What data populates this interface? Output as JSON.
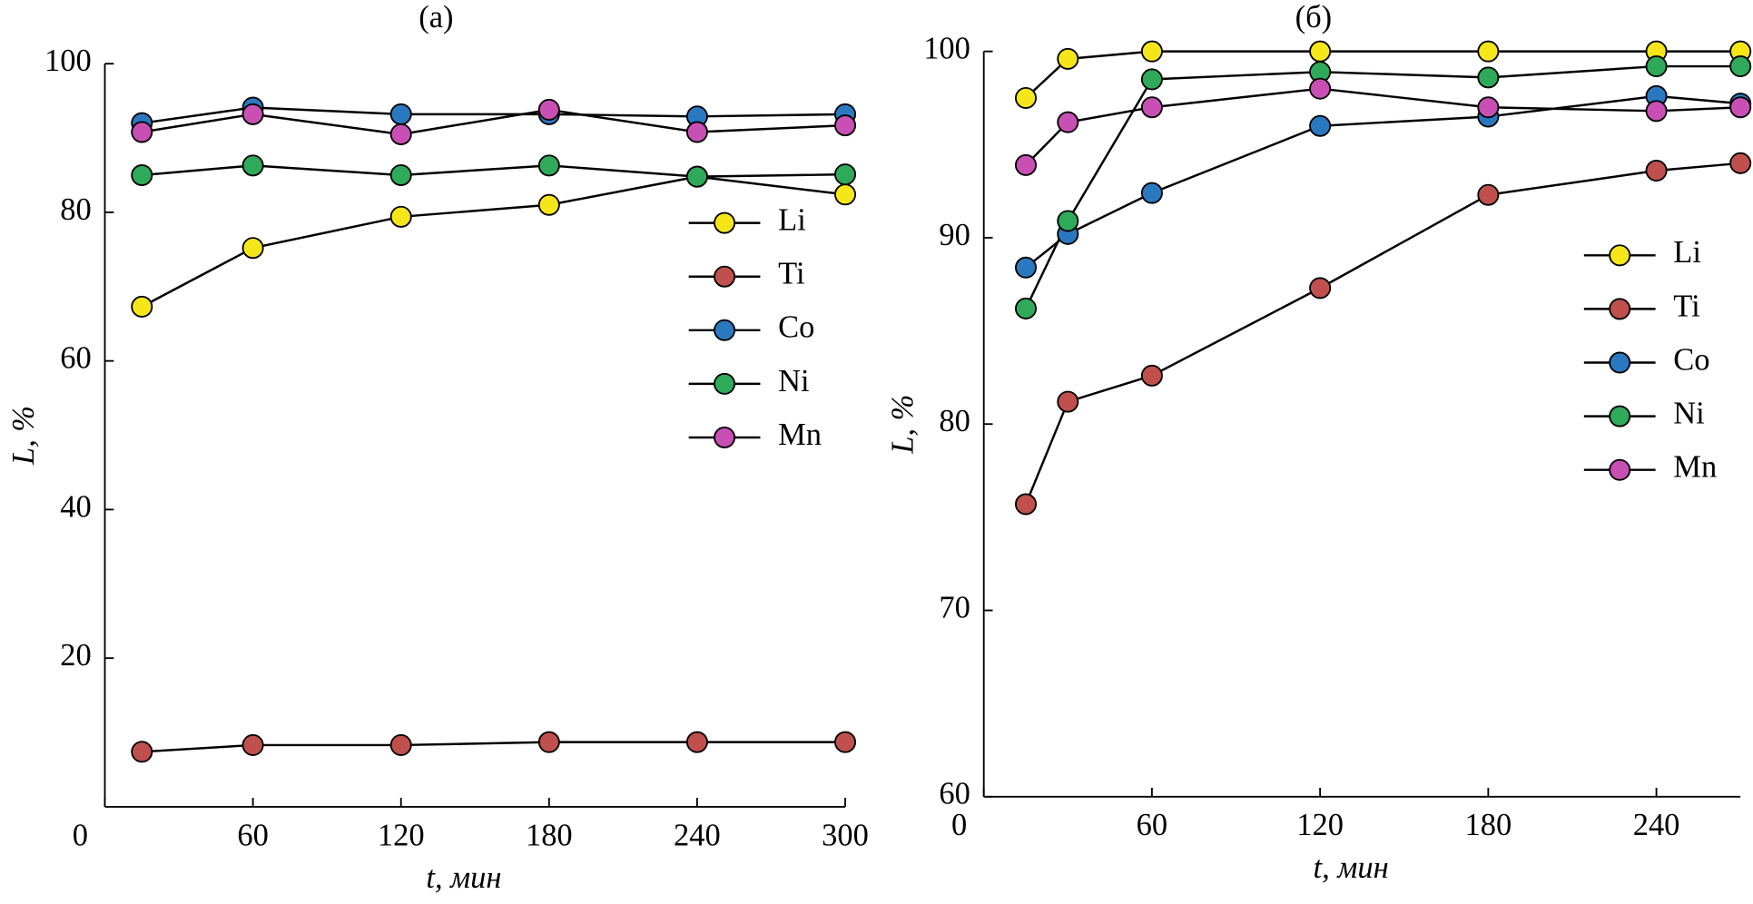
{
  "chart_data": [
    {
      "type": "line",
      "title": "(a)",
      "xlabel": "t, мин",
      "ylabel": "L, %",
      "x": [
        15,
        60,
        120,
        180,
        240,
        300
      ],
      "xlim": [
        0,
        300
      ],
      "xticks": [
        0,
        60,
        120,
        180,
        240,
        300
      ],
      "ylim": [
        0,
        100
      ],
      "yticks": [
        20,
        40,
        60,
        80,
        100
      ],
      "legend": "center right",
      "series": [
        {
          "name": "Li",
          "color": "#f5e61a",
          "values": [
            67.3,
            75.2,
            79.4,
            81.0,
            84.8,
            82.4
          ]
        },
        {
          "name": "Ti",
          "color": "#c0504d",
          "values": [
            7.4,
            8.3,
            8.3,
            8.7,
            8.7,
            8.7
          ]
        },
        {
          "name": "Co",
          "color": "#2a79c0",
          "values": [
            92.0,
            94.1,
            93.2,
            93.2,
            92.9,
            93.2
          ]
        },
        {
          "name": "Ni",
          "color": "#2eaa5a",
          "values": [
            85.0,
            86.3,
            85.0,
            86.3,
            84.8,
            85.1
          ]
        },
        {
          "name": "Mn",
          "color": "#c84fb4",
          "values": [
            90.8,
            93.2,
            90.5,
            93.8,
            90.8,
            91.7
          ]
        }
      ]
    },
    {
      "type": "line",
      "title": "(б)",
      "xlabel": "t, мин",
      "ylabel": "L, %",
      "x": [
        15,
        30,
        60,
        120,
        180,
        240,
        270
      ],
      "xlim": [
        0,
        270
      ],
      "xticks": [
        0,
        60,
        120,
        180,
        240
      ],
      "ylim": [
        60,
        100
      ],
      "yticks": [
        60,
        70,
        80,
        90,
        100
      ],
      "legend": "center right",
      "series": [
        {
          "name": "Li",
          "color": "#f5e61a",
          "values": [
            97.5,
            99.6,
            100,
            100,
            100,
            100,
            100
          ]
        },
        {
          "name": "Ti",
          "color": "#c0504d",
          "values": [
            75.7,
            81.2,
            82.6,
            87.3,
            92.3,
            93.6,
            94.0
          ]
        },
        {
          "name": "Co",
          "color": "#2a79c0",
          "values": [
            88.4,
            90.2,
            92.4,
            96.0,
            96.5,
            97.6,
            97.2
          ]
        },
        {
          "name": "Ni",
          "color": "#2eaa5a",
          "values": [
            86.2,
            90.9,
            98.5,
            98.9,
            98.6,
            99.2,
            99.2
          ]
        },
        {
          "name": "Mn",
          "color": "#c84fb4",
          "values": [
            93.9,
            96.2,
            97.0,
            98.0,
            97.0,
            96.8,
            97.0
          ]
        }
      ]
    }
  ]
}
